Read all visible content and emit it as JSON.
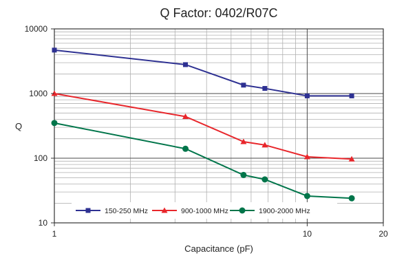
{
  "chart_data": {
    "type": "line",
    "title": "Q Factor: 0402/R07C",
    "xlabel": "Capacitance (pF)",
    "ylabel": "Q",
    "xscale": "log",
    "yscale": "log",
    "xlim": [
      1,
      20
    ],
    "ylim": [
      10,
      10000
    ],
    "x_tick_labels": [
      "1",
      "10",
      "20"
    ],
    "y_tick_labels": [
      "10",
      "100",
      "1000",
      "10000"
    ],
    "grid": true,
    "legend_position": "bottom",
    "series": [
      {
        "name": "150-250 MHz",
        "color": "#2e3192",
        "marker": "square",
        "x": [
          1,
          3.3,
          5.6,
          6.8,
          10,
          15
        ],
        "y": [
          4700,
          2800,
          1350,
          1200,
          920,
          920
        ]
      },
      {
        "name": "900-1000 MHz",
        "color": "#e8262b",
        "marker": "triangle",
        "x": [
          1,
          3.3,
          5.6,
          6.8,
          10,
          15
        ],
        "y": [
          1000,
          440,
          180,
          160,
          105,
          97
        ]
      },
      {
        "name": "1900-2000 MHz",
        "color": "#00754a",
        "marker": "circle",
        "x": [
          1,
          3.3,
          5.6,
          6.8,
          10,
          15
        ],
        "y": [
          350,
          140,
          55,
          47,
          26,
          24
        ]
      }
    ]
  }
}
